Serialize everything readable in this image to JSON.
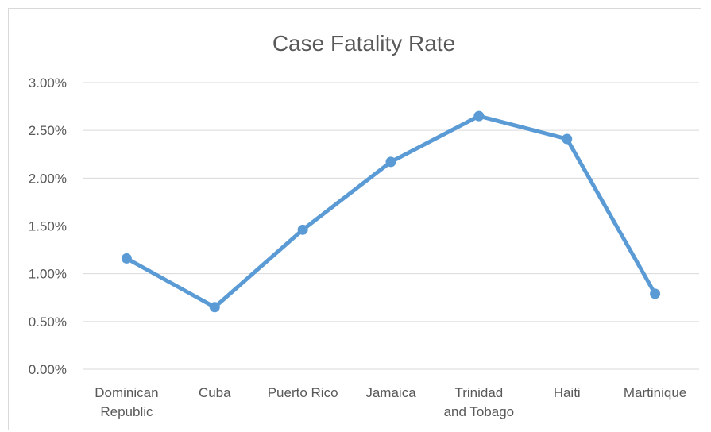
{
  "chart_data": {
    "type": "line",
    "title": "Case Fatality Rate",
    "xlabel": "",
    "ylabel": "",
    "categories": [
      [
        "Dominican",
        "Republic"
      ],
      [
        "Cuba"
      ],
      [
        "Puerto Rico"
      ],
      [
        "Jamaica"
      ],
      [
        "Trinidad",
        "and Tobago"
      ],
      [
        "Haiti"
      ],
      [
        "Martinique"
      ]
    ],
    "series": [
      {
        "values": [
          1.16,
          0.65,
          1.46,
          2.17,
          2.65,
          2.41,
          0.79
        ],
        "color": "#5b9bd5"
      }
    ],
    "ylim": [
      0,
      3
    ],
    "yticks": [
      "0.00%",
      "0.50%",
      "1.00%",
      "1.50%",
      "2.00%",
      "2.50%",
      "3.00%"
    ],
    "grid": true,
    "legend": "none"
  }
}
